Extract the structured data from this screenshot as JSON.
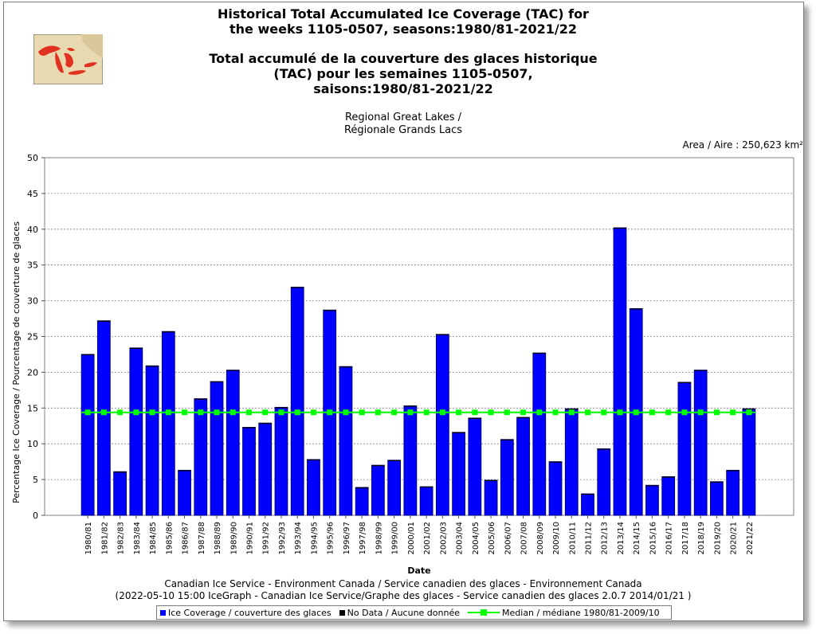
{
  "title": {
    "line1": "Historical Total Accumulated Ice Coverage (TAC) for",
    "line2": "the weeks 1105-0507, seasons:1980/81-2021/22",
    "line3": "Total accumulé de la couverture des glaces historique",
    "line4": "(TAC) pour les semaines 1105-0507,",
    "line5": "saisons:1980/81-2021/22"
  },
  "subtitle": {
    "line1": "Regional Great Lakes /",
    "line2": "Régionale Grands Lacs"
  },
  "area_label": "Area / Aire : 250,623 km²",
  "footer": {
    "line1": "Canadian Ice Service - Environment Canada / Service canadien des glaces - Environnement Canada",
    "line2": "(2022-05-10 15:00 IceGraph - Canadian Ice Service/Graphe des glaces - Service canadien des glaces 2.0.7 2014/01/21 )"
  },
  "legend": {
    "ice": "Ice Coverage / couverture des glaces",
    "nodata": "No Data / Aucune donnée",
    "median": "Median / médiane 1980/81-2009/10"
  },
  "colors": {
    "bar": "#0000ff",
    "bar_shadow": "#000080",
    "median": "#00ff00",
    "nodata": "#000000",
    "grid": "#808080",
    "map_water": "#e03020",
    "map_land": "#e8d9b0"
  },
  "chart_data": {
    "type": "bar",
    "xlabel": "Date",
    "ylabel": "Percentage Ice Coverage / Pourcentage de couverture de glaces",
    "ylim": [
      0,
      50
    ],
    "yticks": [
      0,
      5,
      10,
      15,
      20,
      25,
      30,
      35,
      40,
      45,
      50
    ],
    "grid": true,
    "legend_position": "bottom",
    "categories": [
      "1980/81",
      "1981/82",
      "1982/83",
      "1983/84",
      "1984/85",
      "1985/86",
      "1986/87",
      "1987/88",
      "1988/89",
      "1989/90",
      "1990/91",
      "1991/92",
      "1992/93",
      "1993/94",
      "1994/95",
      "1995/96",
      "1996/97",
      "1997/98",
      "1998/99",
      "1999/00",
      "2000/01",
      "2001/02",
      "2002/03",
      "2003/04",
      "2004/05",
      "2005/06",
      "2006/07",
      "2007/08",
      "2008/09",
      "2009/10",
      "2010/11",
      "2011/12",
      "2012/13",
      "2013/14",
      "2014/15",
      "2015/16",
      "2016/17",
      "2017/18",
      "2018/19",
      "2019/20",
      "2020/21",
      "2021/22"
    ],
    "series": [
      {
        "name": "Ice Coverage / couverture des glaces",
        "values": [
          22.5,
          27.2,
          6.1,
          23.4,
          20.9,
          25.7,
          6.3,
          16.3,
          18.7,
          20.3,
          12.3,
          12.9,
          15.1,
          31.9,
          7.8,
          28.7,
          20.8,
          3.9,
          7.0,
          7.7,
          15.3,
          4.0,
          25.3,
          11.6,
          13.6,
          4.9,
          10.6,
          13.7,
          22.7,
          7.5,
          14.9,
          3.0,
          9.3,
          40.2,
          28.9,
          4.2,
          5.4,
          18.6,
          20.3,
          4.7,
          6.3,
          14.9
        ]
      }
    ],
    "median": {
      "name": "Median / médiane 1980/81-2009/10",
      "value": 14.4
    }
  }
}
